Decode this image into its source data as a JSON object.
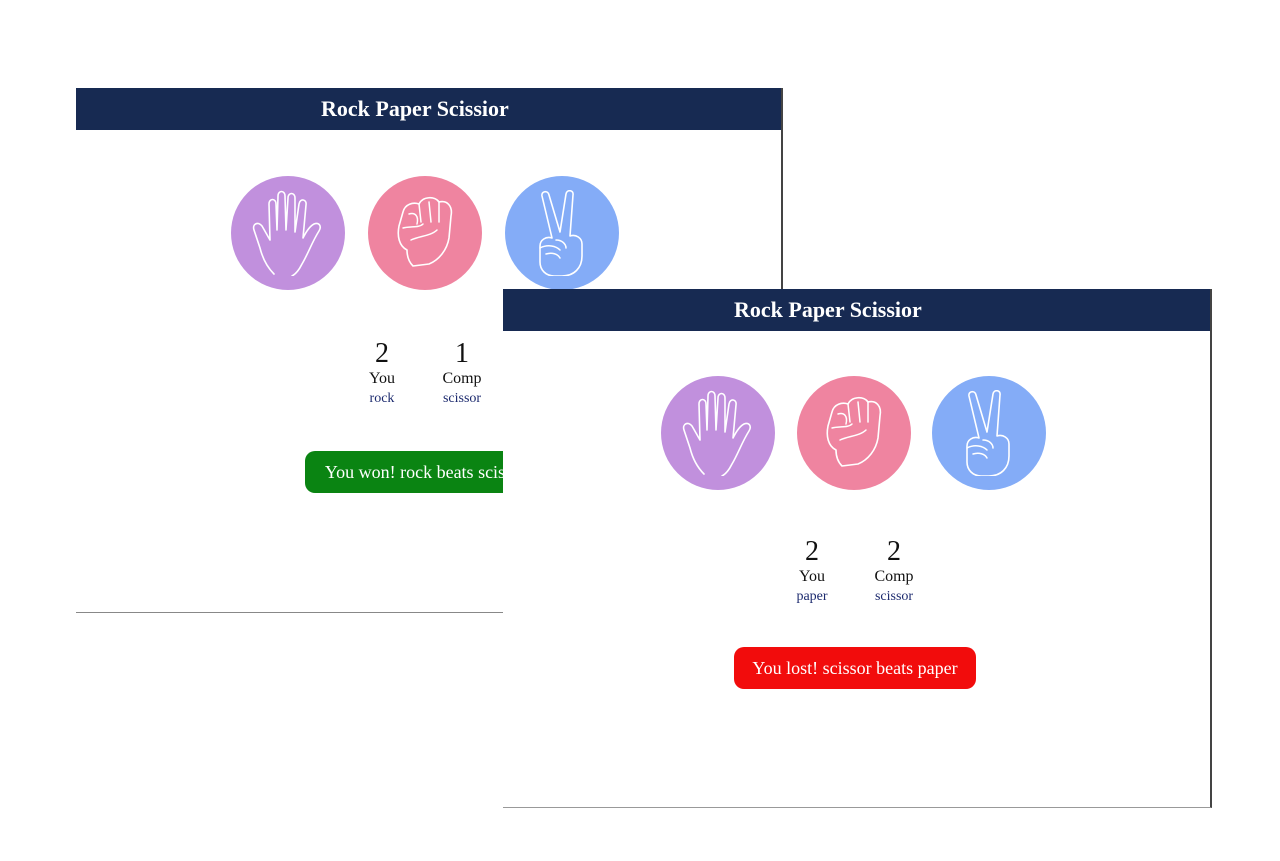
{
  "colors": {
    "titlebar": "#172a52",
    "paper": "#c190dd",
    "rock": "#ef84a0",
    "scissor": "#84acf7",
    "win": "#0a8412",
    "loss": "#f20c0c"
  },
  "window1": {
    "title": "Rock Paper Scissior",
    "choices": [
      {
        "name": "paper",
        "icon": "open-hand-icon"
      },
      {
        "name": "rock",
        "icon": "fist-icon"
      },
      {
        "name": "scissor",
        "icon": "peace-sign-icon"
      }
    ],
    "scoreboard": {
      "user": {
        "score": "2",
        "label": "You",
        "choice": "rock"
      },
      "comp": {
        "score": "1",
        "label": "Comp",
        "choice": "scissor"
      }
    },
    "message": "You won! rock beats scissor"
  },
  "window2": {
    "title": "Rock Paper Scissior",
    "choices": [
      {
        "name": "paper",
        "icon": "open-hand-icon"
      },
      {
        "name": "rock",
        "icon": "fist-icon"
      },
      {
        "name": "scissor",
        "icon": "peace-sign-icon"
      }
    ],
    "scoreboard": {
      "user": {
        "score": "2",
        "label": "You",
        "choice": "paper"
      },
      "comp": {
        "score": "2",
        "label": "Comp",
        "choice": "scissor"
      }
    },
    "message": "You lost! scissor beats paper"
  }
}
